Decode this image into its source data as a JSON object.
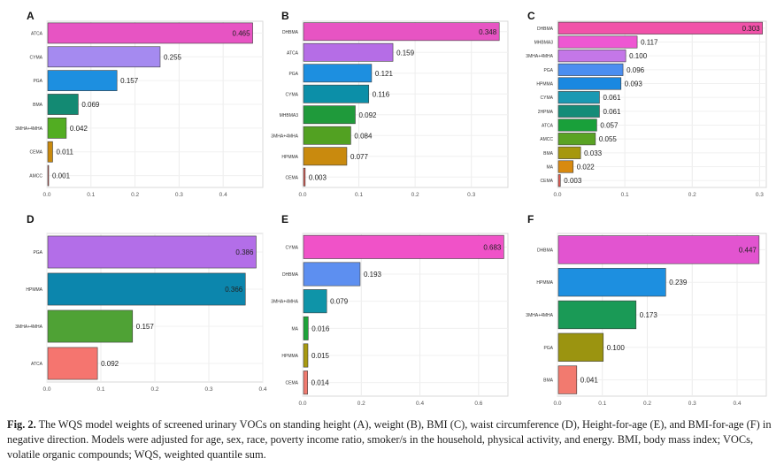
{
  "chart_data": [
    {
      "type": "bar",
      "orientation": "horizontal",
      "panel_label": "A",
      "categories": [
        "ATCA",
        "CYMA",
        "PGA",
        "BMA",
        "3MHA+4MHA",
        "CEMA",
        "AMCC"
      ],
      "values": [
        0.465,
        0.255,
        0.157,
        0.069,
        0.042,
        0.011,
        0.001
      ],
      "value_labels": [
        "0.465",
        "0.255",
        "0.157",
        "0.069",
        "0.042",
        "0.011",
        "0.001"
      ],
      "xticks": [
        "0.0",
        "0.1",
        "0.2",
        "0.3",
        "0.4"
      ],
      "xlim": [
        0,
        0.49
      ],
      "colors": [
        "#e754c3",
        "#a58af0",
        "#1d8fe0",
        "#138a73",
        "#52ad22",
        "#c98a0e",
        "#e05a52"
      ],
      "grid": true
    },
    {
      "type": "bar",
      "orientation": "horizontal",
      "panel_label": "B",
      "categories": [
        "DHBMA",
        "ATCA",
        "PGA",
        "CYMA",
        "MHBMA3",
        "3MHA+4MHA",
        "HPMMA",
        "CEMA"
      ],
      "values": [
        0.348,
        0.159,
        0.121,
        0.116,
        0.092,
        0.084,
        0.077,
        0.003
      ],
      "value_labels": [
        "0.348",
        "0.159",
        "0.121",
        "0.116",
        "0.092",
        "0.084",
        "0.077",
        "0.003"
      ],
      "xticks": [
        "0.0",
        "0.1",
        "0.2",
        "0.3"
      ],
      "xlim": [
        0,
        0.365
      ],
      "colors": [
        "#e754c3",
        "#b56de6",
        "#1d8fe0",
        "#0c8fa8",
        "#1f9a3b",
        "#52a122",
        "#c98a0e",
        "#e05a52"
      ],
      "grid": true
    },
    {
      "type": "bar",
      "orientation": "horizontal",
      "panel_label": "C",
      "categories": [
        "DHBMA",
        "MHBMA3",
        "3MHA+4MHA",
        "PGA",
        "HPMMA",
        "CYMA",
        "2HPMA",
        "ATCA",
        "AMCC",
        "BMA",
        "MA",
        "CEMA"
      ],
      "values": [
        0.303,
        0.117,
        0.1,
        0.096,
        0.093,
        0.061,
        0.061,
        0.057,
        0.055,
        0.033,
        0.022,
        0.003
      ],
      "value_labels": [
        "0.303",
        "0.117",
        "0.100",
        "0.096",
        "0.093",
        "0.061",
        "0.061",
        "0.057",
        "0.055",
        "0.033",
        "0.022",
        "0.003"
      ],
      "xticks": [
        "0.0",
        "0.1",
        "0.2",
        "0.3"
      ],
      "xlim": [
        0,
        0.31
      ],
      "colors": [
        "#f152a9",
        "#ee57d2",
        "#c477e8",
        "#4b8ef0",
        "#1a88e0",
        "#1a99b3",
        "#158c78",
        "#19a03a",
        "#5aa324",
        "#a6980e",
        "#d88a10",
        "#e05a52"
      ],
      "grid": true
    },
    {
      "type": "bar",
      "orientation": "horizontal",
      "panel_label": "D",
      "categories": [
        "PGA",
        "HPMMA",
        "3MHA+4MHA",
        "ATCA"
      ],
      "values": [
        0.386,
        0.366,
        0.157,
        0.092
      ],
      "value_labels": [
        "0.386",
        "0.366",
        "0.157",
        "0.092"
      ],
      "xticks": [
        "0.0",
        "0.1",
        "0.2",
        "0.3",
        "0.4"
      ],
      "xlim": [
        0,
        0.4
      ],
      "colors": [
        "#b36ee8",
        "#0c86ad",
        "#4fa235",
        "#f5756f"
      ],
      "grid": true
    },
    {
      "type": "bar",
      "orientation": "horizontal",
      "panel_label": "E",
      "categories": [
        "CYMA",
        "DHBMA",
        "3MHA+4MHA",
        "MA",
        "HPMMA",
        "CEMA"
      ],
      "values": [
        0.683,
        0.193,
        0.079,
        0.016,
        0.015,
        0.014
      ],
      "value_labels": [
        "0.683",
        "0.193",
        "0.079",
        "0.016",
        "0.015",
        "0.014"
      ],
      "xticks": [
        "0.0",
        "0.2",
        "0.4",
        "0.6"
      ],
      "xlim": [
        0,
        0.7
      ],
      "colors": [
        "#f052c8",
        "#5d8ff0",
        "#0f94a8",
        "#1ea33a",
        "#a89a10",
        "#f07a6f"
      ],
      "grid": true
    },
    {
      "type": "bar",
      "orientation": "horizontal",
      "panel_label": "F",
      "categories": [
        "DHBMA",
        "HPMMA",
        "3MHA+4MHA",
        "PGA",
        "BMA"
      ],
      "values": [
        0.447,
        0.239,
        0.173,
        0.1,
        0.041
      ],
      "value_labels": [
        "0.447",
        "0.239",
        "0.173",
        "0.100",
        "0.041"
      ],
      "xticks": [
        "0.0",
        "0.1",
        "0.2",
        "0.3",
        "0.4"
      ],
      "xlim": [
        0,
        0.465
      ],
      "colors": [
        "#e254d0",
        "#1d8fe0",
        "#1a9a56",
        "#9b9410",
        "#f27a6f"
      ],
      "grid": true
    }
  ],
  "caption": {
    "label": "Fig. 2.",
    "text": " The WQS model weights of screened urinary VOCs on standing height (A), weight (B), BMI (C), waist circumference (D), Height-for-age (E), and BMI-for-age (F) in negative direction. Models were adjusted for age, sex, race, poverty income ratio, smoker/s in the household, physical activity, and energy. BMI, body mass index; VOCs, volatile organic compounds; WQS, weighted quantile sum."
  }
}
